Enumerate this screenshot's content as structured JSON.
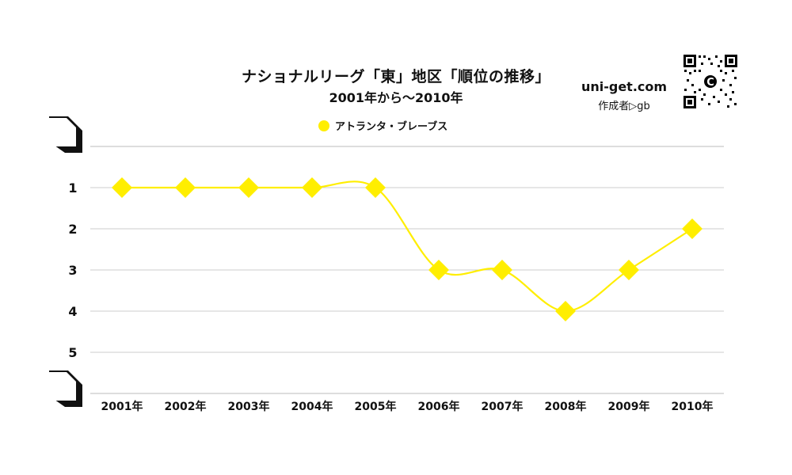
{
  "header": {
    "title": "ナショナルリーグ「東」地区「順位の推移」",
    "subtitle": "2001年から～2010年"
  },
  "brand": {
    "site": "uni-get.com",
    "author": "作成者▷gb",
    "qr_icon": "qr-code-icon"
  },
  "colors": {
    "series": "#ffee00",
    "grid": "#cccccc",
    "text": "#111111"
  },
  "chart_data": {
    "type": "line",
    "title": "ナショナルリーグ「東」地区「順位の推移」",
    "subtitle": "2001年から～2010年",
    "xlabel": "",
    "ylabel": "",
    "categories": [
      "2001年",
      "2002年",
      "2003年",
      "2004年",
      "2005年",
      "2006年",
      "2007年",
      "2008年",
      "2009年",
      "2010年"
    ],
    "series": [
      {
        "name": "アトランタ・ブレーブス",
        "values": [
          1,
          1,
          1,
          1,
          1,
          3,
          3,
          4,
          3,
          2
        ],
        "marker": "diamond",
        "color": "#ffee00"
      }
    ],
    "y_ticks": [
      "1",
      "2",
      "3",
      "4",
      "5"
    ],
    "ylim": [
      0,
      6
    ],
    "y_inverted": true,
    "grid": true,
    "legend": "top-center",
    "smooth": true
  }
}
